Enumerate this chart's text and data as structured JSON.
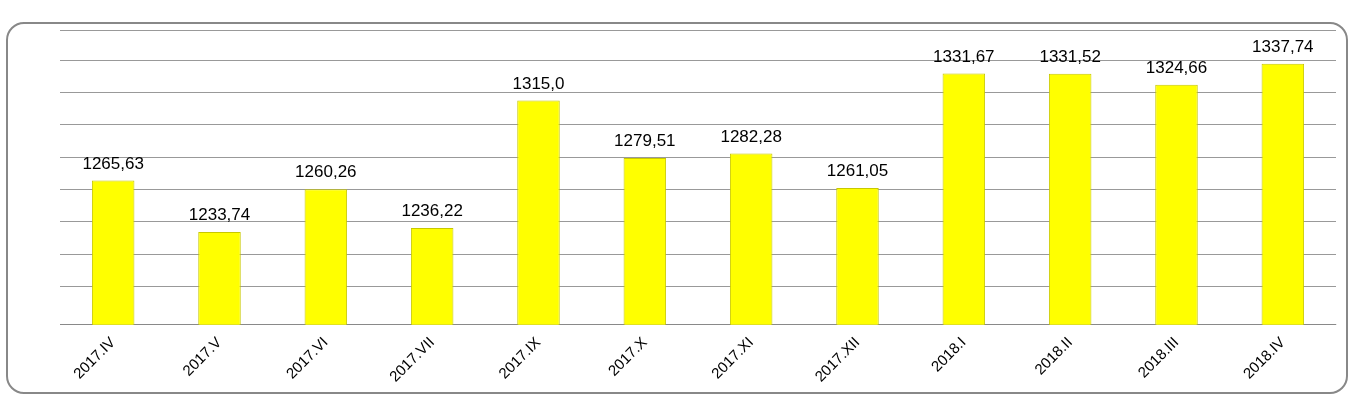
{
  "chart_data": {
    "type": "bar",
    "categories": [
      "2017.IV",
      "2017.V",
      "2017.VI",
      "2017.VII",
      "2017.IX",
      "2017.X",
      "2017.XI",
      "2017.XII",
      "2018.I",
      "2018.II",
      "2018.III",
      "2018.IV"
    ],
    "values": [
      1265.63,
      1233.74,
      1260.26,
      1236.22,
      1315.0,
      1279.51,
      1282.28,
      1261.05,
      1331.67,
      1331.52,
      1324.66,
      1337.74
    ],
    "value_labels": [
      "1265,63",
      "1233,74",
      "1260,26",
      "1236,22",
      "1315,0",
      "1279,51",
      "1282,28",
      "1261,05",
      "1331,67",
      "1331,52",
      "1324,66",
      "1337,74"
    ],
    "color": "#ffff00",
    "grid": "y",
    "tick_labels": "x",
    "legend": false
  }
}
